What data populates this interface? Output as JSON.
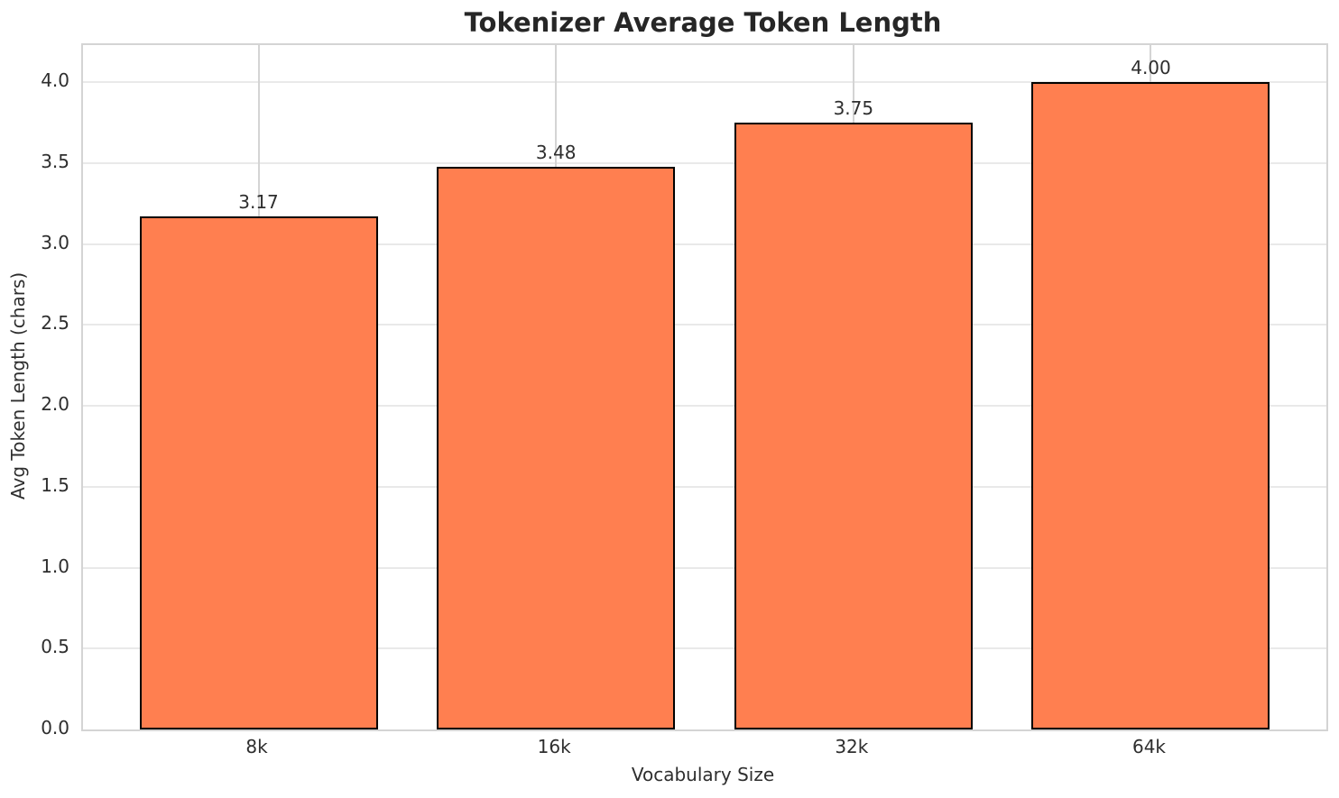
{
  "chart_data": {
    "type": "bar",
    "title": "Tokenizer Average Token Length",
    "xlabel": "Vocabulary Size",
    "ylabel": "Avg Token Length (chars)",
    "categories": [
      "8k",
      "16k",
      "32k",
      "64k"
    ],
    "values": [
      3.17,
      3.48,
      3.75,
      4.0
    ],
    "value_labels": [
      "3.17",
      "3.48",
      "3.75",
      "4.00"
    ],
    "ylim": [
      0,
      4.23
    ],
    "xlim": [
      -0.59,
      3.59
    ],
    "bar_width": 0.8,
    "yticks": [
      0,
      0.5,
      1,
      1.5,
      2,
      2.5,
      3,
      3.5,
      4
    ],
    "ytick_labels": [
      "0.0",
      "0.5",
      "1.0",
      "1.5",
      "2.0",
      "2.5",
      "3.0",
      "3.5",
      "4.0"
    ],
    "grid": true,
    "legend": "none",
    "colors": {
      "bar_fill": "#FF7F50",
      "bar_edge": "#000000",
      "grid_horizontal": "#e9e9e9",
      "grid_vertical": "#d4d4d4",
      "spine": "#d4d4d4",
      "text": "#2e2e2e",
      "title": "#262626",
      "background": "#ffffff"
    }
  }
}
